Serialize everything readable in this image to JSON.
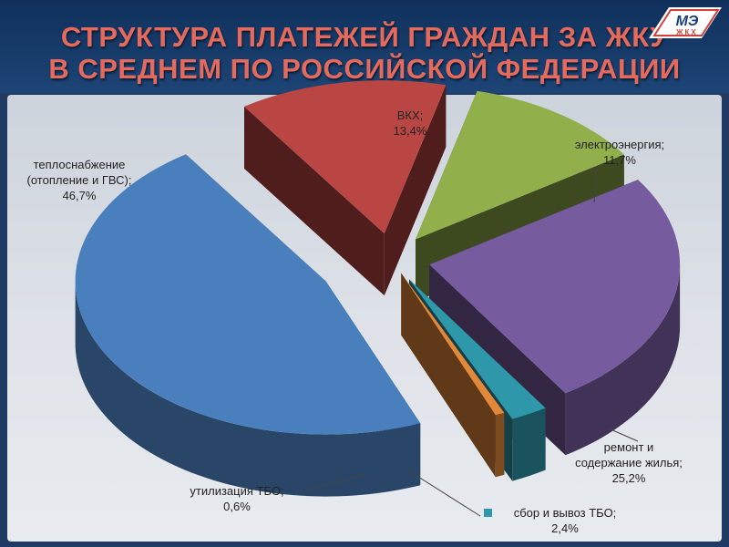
{
  "header": {
    "title_line1": "СТРУКТУРА ПЛАТЕЖЕЙ ГРАЖДАН ЗА ЖКУ",
    "title_line2": "В СРЕДНЕМ ПО РОССИЙСКОЙ ФЕДЕРАЦИИ",
    "logo_text": "МЭ",
    "logo_subtext": "ЖКХ"
  },
  "chart_data": {
    "type": "pie",
    "title": "СТРУКТУРА ПЛАТЕЖЕЙ ГРАЖДАН ЗА ЖКУ В СРЕДНЕМ ПО РОССИЙСКОЙ ФЕДЕРАЦИИ",
    "style": "3d-exploded",
    "slices": [
      {
        "label_line1": "ВКХ;",
        "label_line2": "",
        "value": 13.4,
        "value_label": "13,4%",
        "color": "#b94643"
      },
      {
        "label_line1": "электроэнергия;",
        "label_line2": "",
        "value": 11.7,
        "value_label": "11,7%",
        "color": "#91b04c"
      },
      {
        "label_line1": "ремонт и",
        "label_line2": "содержание жилья;",
        "value": 25.2,
        "value_label": "25,2%",
        "color": "#765b9e"
      },
      {
        "label_line1": "сбор и вывоз ТБО;",
        "label_line2": "",
        "value": 2.4,
        "value_label": "2,4%",
        "color": "#2f97aa"
      },
      {
        "label_line1": "утилизация ТБО;",
        "label_line2": "",
        "value": 0.6,
        "value_label": "0,6%",
        "color": "#e3883a"
      },
      {
        "label_line1": "теплоснабжение",
        "label_line2": "(отопление и ГВС);",
        "value": 46.7,
        "value_label": "46,7%",
        "color": "#4a7fbe"
      }
    ]
  }
}
